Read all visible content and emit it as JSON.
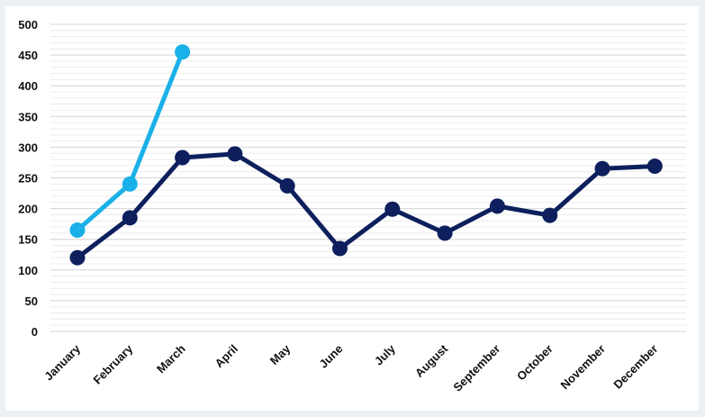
{
  "chart_data": {
    "type": "line",
    "categories": [
      "January",
      "February",
      "March",
      "April",
      "May",
      "June",
      "July",
      "August",
      "September",
      "October",
      "November",
      "December"
    ],
    "series": [
      {
        "values": [
          120,
          185,
          283,
          289,
          237,
          135,
          199,
          160,
          204,
          189,
          265,
          269
        ],
        "color": "#0d1f5c"
      },
      {
        "values": [
          165,
          240,
          455,
          null,
          null,
          null,
          null,
          null,
          null,
          null,
          null,
          null
        ],
        "color": "#1ab0e8"
      }
    ],
    "y_ticks": [
      "0",
      "50",
      "100",
      "150",
      "200",
      "250",
      "300",
      "350",
      "400",
      "450",
      "500"
    ],
    "ylim": [
      0,
      500
    ],
    "grid": true,
    "legend": "none",
    "title": "",
    "xlabel": "",
    "ylabel": ""
  }
}
